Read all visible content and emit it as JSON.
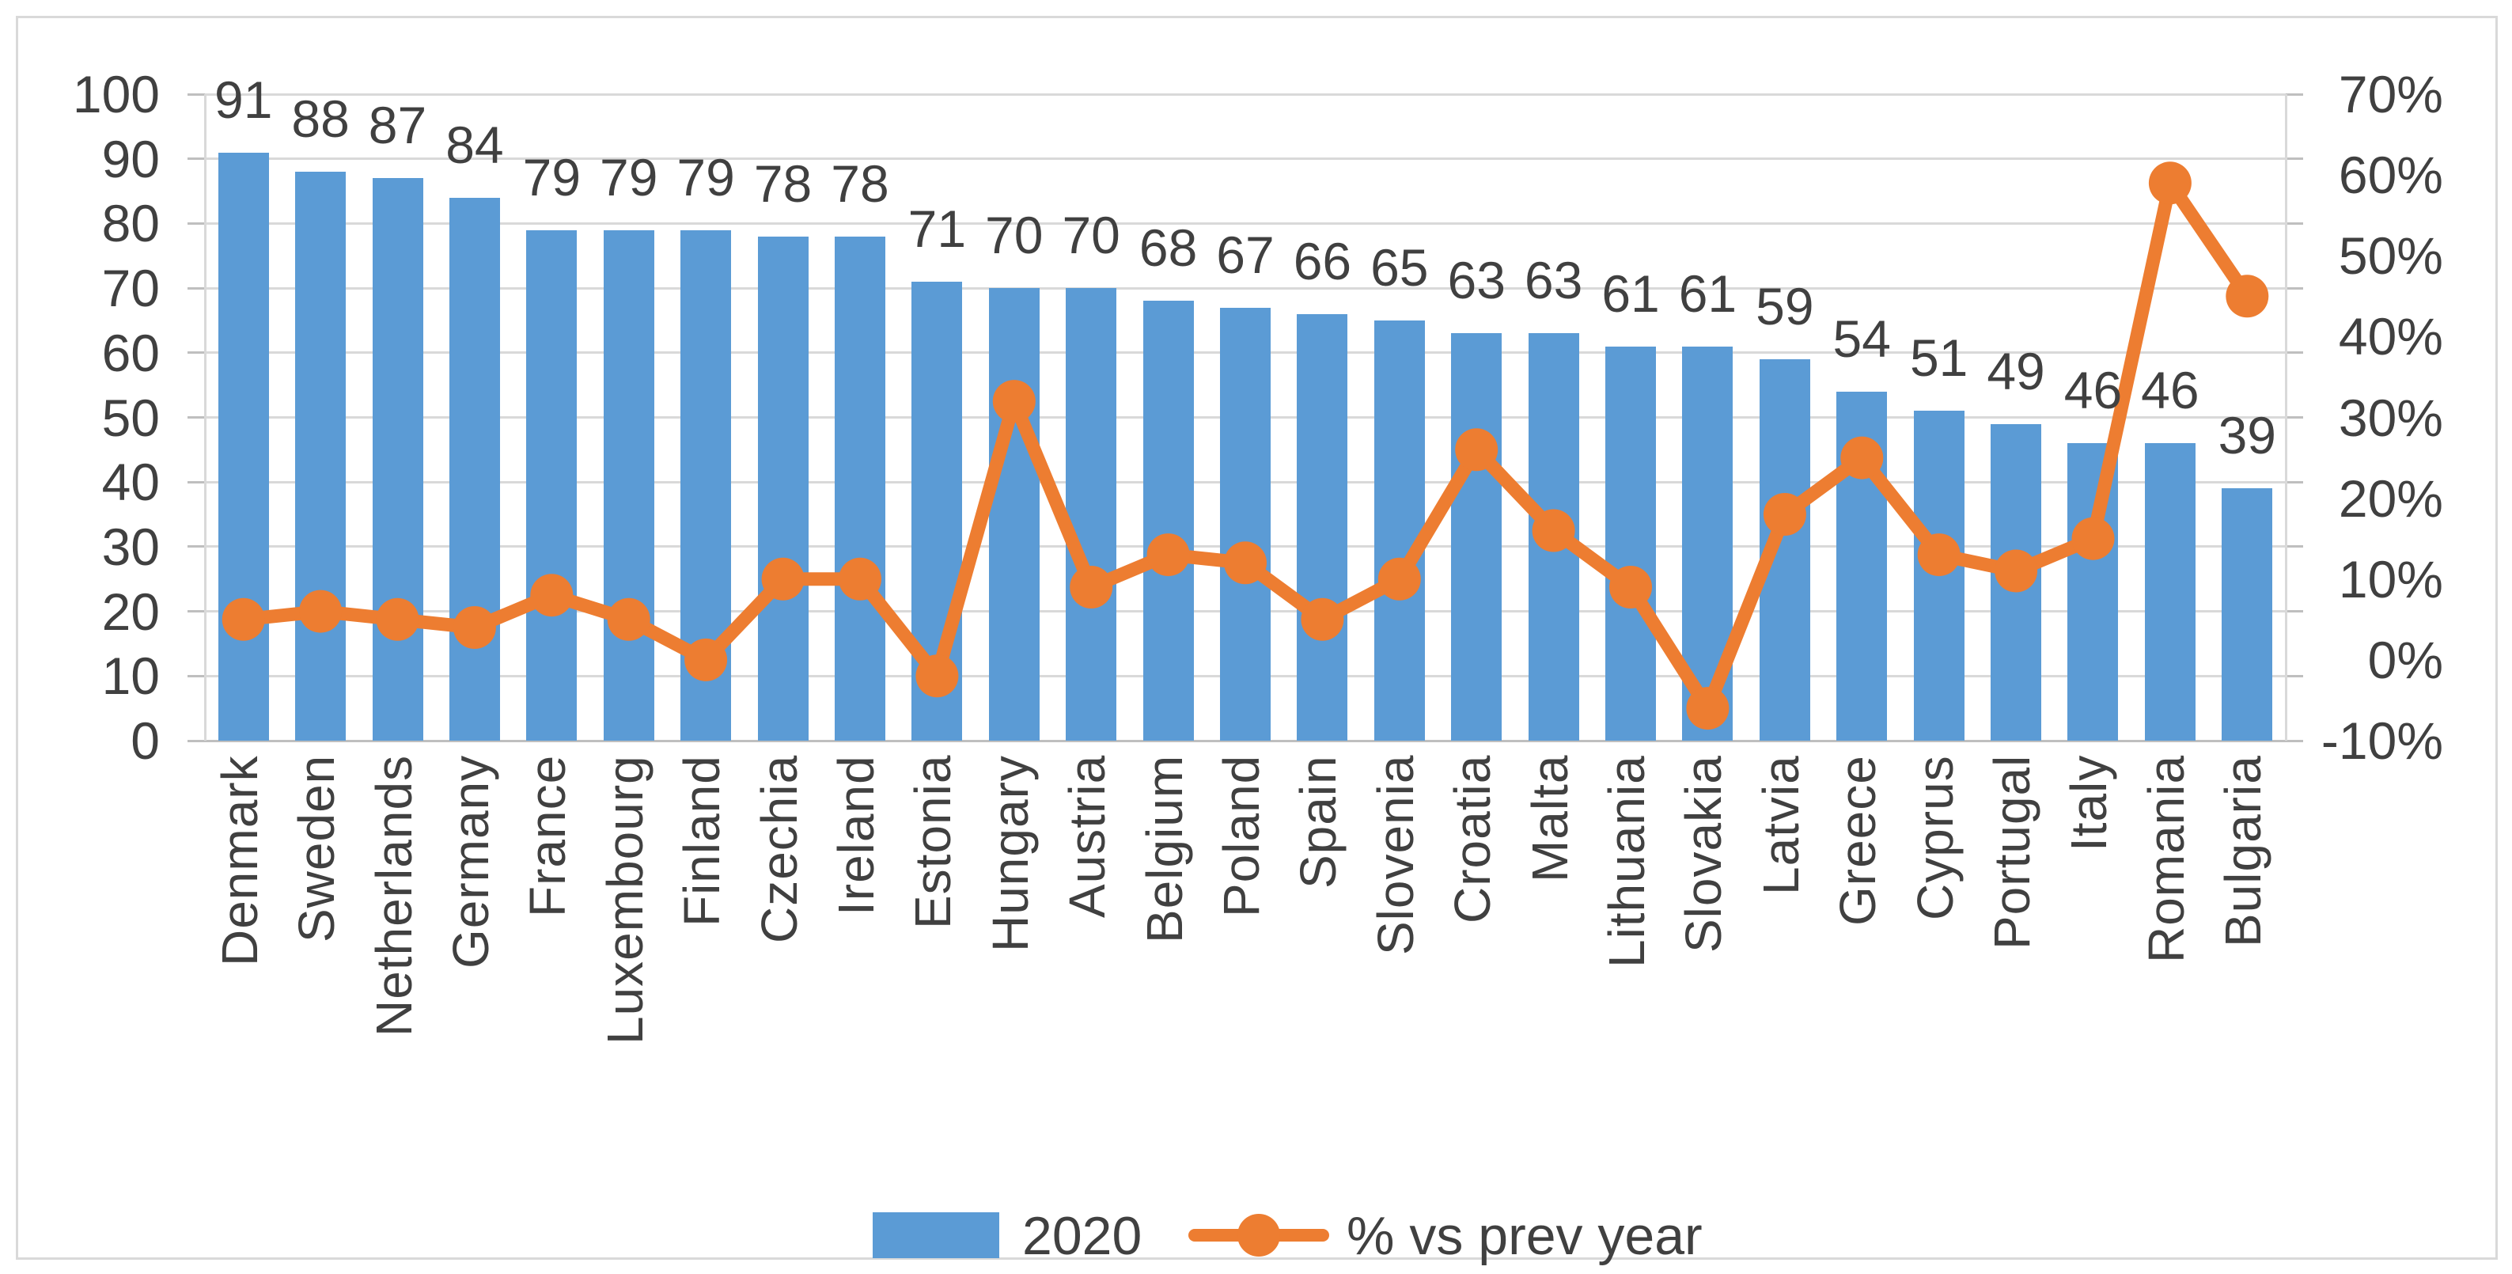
{
  "chart_data": {
    "type": "bar",
    "subtype": "combo-bar-line-dual-axis",
    "title": "",
    "xlabel": "",
    "ylabel": "",
    "grid": true,
    "legend_position": "bottom",
    "categories": [
      "Denmark",
      "Sweden",
      "Netherlands",
      "Germany",
      "France",
      "Luxembourg",
      "Finland",
      "Czechia",
      "Ireland",
      "Estonia",
      "Hungary",
      "Austria",
      "Belgium",
      "Poland",
      "Spain",
      "Slovenia",
      "Croatia",
      "Malta",
      "Lithuania",
      "Slovakia",
      "Latvia",
      "Greece",
      "Cyprus",
      "Portugal",
      "Italy",
      "Romania",
      "Bulgaria"
    ],
    "series": [
      {
        "name": "2020",
        "type": "bar",
        "axis": "left",
        "color": "#5B9BD5",
        "data_labels_shown": true,
        "values": [
          91,
          88,
          87,
          84,
          79,
          79,
          79,
          78,
          78,
          71,
          70,
          70,
          68,
          67,
          66,
          65,
          63,
          63,
          61,
          61,
          59,
          54,
          51,
          49,
          46,
          46,
          39
        ]
      },
      {
        "name": "% vs prev year",
        "type": "line",
        "axis": "right",
        "color": "#ED7D31",
        "marker": "circle",
        "data_labels_shown": false,
        "values_percent": [
          5,
          6,
          5,
          4,
          8,
          5,
          0,
          10,
          10,
          -2,
          32,
          9,
          13,
          12,
          5,
          10,
          26,
          16,
          9,
          -6,
          18,
          25,
          13,
          11,
          15,
          59,
          45
        ]
      }
    ],
    "left_axis": {
      "min": 0,
      "max": 100,
      "step": 10,
      "tick_labels": [
        "0",
        "10",
        "20",
        "30",
        "40",
        "50",
        "60",
        "70",
        "80",
        "90",
        "100"
      ]
    },
    "right_axis": {
      "min": -10,
      "max": 70,
      "step": 10,
      "tick_labels": [
        "-10%",
        "0%",
        "10%",
        "20%",
        "30%",
        "40%",
        "50%",
        "60%",
        "70%"
      ]
    },
    "colors": {
      "bar": "#5B9BD5",
      "line": "#ED7D31",
      "gridline": "#D9D9D9",
      "axis_line": "#BFBFBF",
      "text": "#404040",
      "frame_border": "#D9D9D9",
      "background": "#FFFFFF"
    }
  }
}
